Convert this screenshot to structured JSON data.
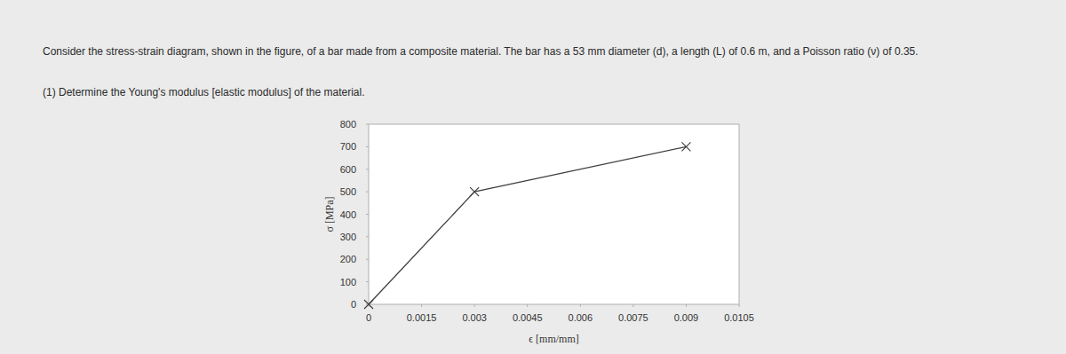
{
  "problem": {
    "statement": "Consider the stress-strain diagram, shown in the figure, of a bar made from a composite material. The bar has a 53 mm diameter (d), a length (L) of 0.6 m, and a Poisson ratio (ν) of 0.35.",
    "question": "(1) Determine the Young's modulus [elastic modulus] of the material."
  },
  "chart_data": {
    "type": "line",
    "xlabel": "ϵ [mm/mm]",
    "ylabel": "σ [MPa]",
    "series": [
      {
        "name": "stress-strain",
        "color": "#404040",
        "marker": "x",
        "x": [
          0,
          0.003,
          0.009
        ],
        "values": [
          0,
          500,
          700
        ]
      }
    ],
    "xlim": [
      0,
      0.0105
    ],
    "xticks": [
      0,
      0.0015,
      0.003,
      0.0045,
      0.006,
      0.0075,
      0.009,
      0.0105
    ],
    "ylim": [
      0,
      800
    ],
    "yticks": [
      0,
      100,
      200,
      300,
      400,
      500,
      600,
      700,
      800
    ],
    "grid": false
  }
}
